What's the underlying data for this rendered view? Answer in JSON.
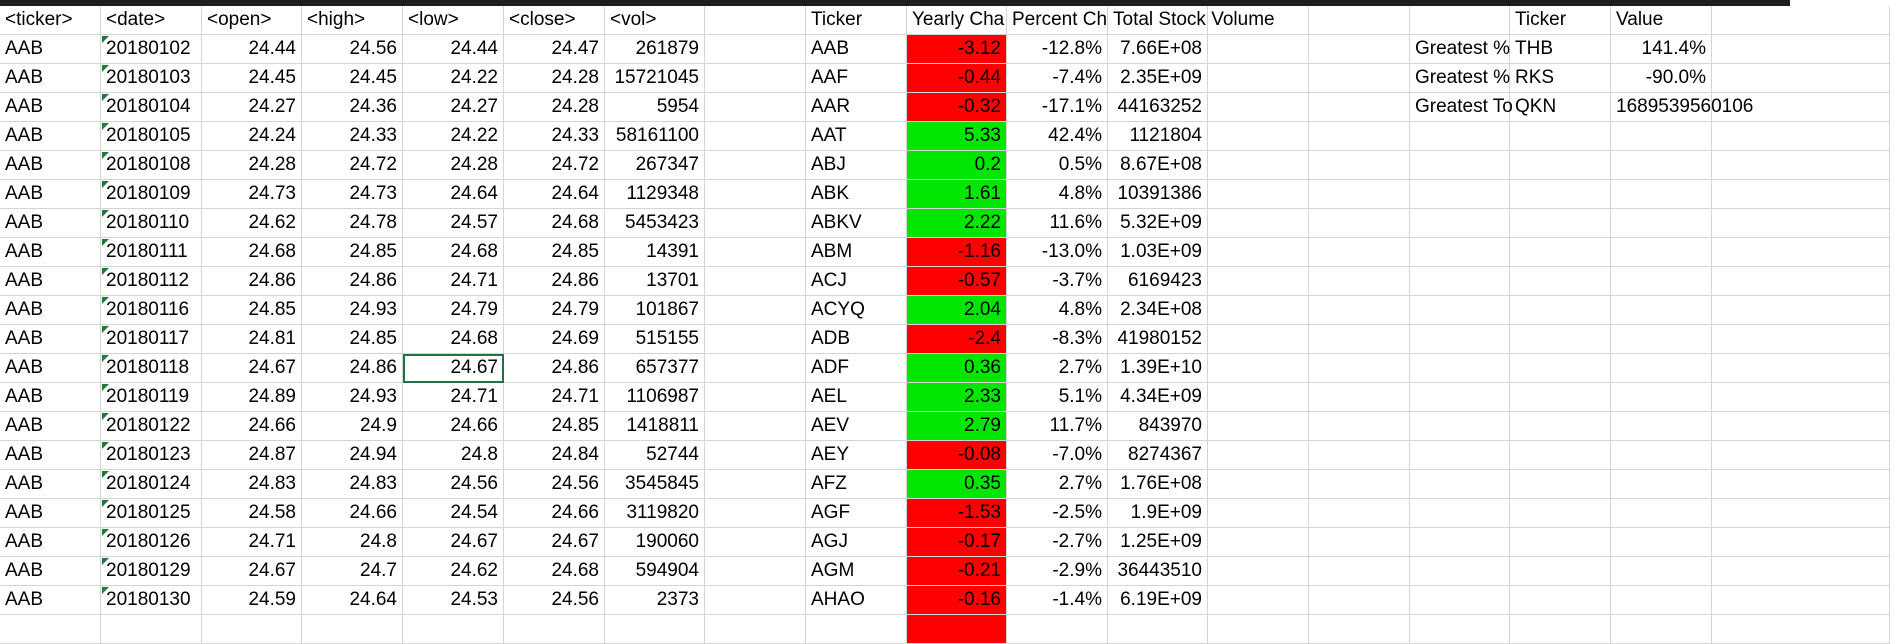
{
  "colors": {
    "negative_fill": "#ff0000",
    "positive_fill": "#00e600",
    "selection": "#217346",
    "gridline": "#d4d4d4"
  },
  "raw_headers": [
    "<ticker>",
    "<date>",
    "<open>",
    "<high>",
    "<low>",
    "<close>",
    "<vol>"
  ],
  "raw_rows": [
    [
      "AAB",
      "20180102",
      "24.44",
      "24.56",
      "24.44",
      "24.47",
      "261879"
    ],
    [
      "AAB",
      "20180103",
      "24.45",
      "24.45",
      "24.22",
      "24.28",
      "15721045"
    ],
    [
      "AAB",
      "20180104",
      "24.27",
      "24.36",
      "24.27",
      "24.28",
      "5954"
    ],
    [
      "AAB",
      "20180105",
      "24.24",
      "24.33",
      "24.22",
      "24.33",
      "58161100"
    ],
    [
      "AAB",
      "20180108",
      "24.28",
      "24.72",
      "24.28",
      "24.72",
      "267347"
    ],
    [
      "AAB",
      "20180109",
      "24.73",
      "24.73",
      "24.64",
      "24.64",
      "1129348"
    ],
    [
      "AAB",
      "20180110",
      "24.62",
      "24.78",
      "24.57",
      "24.68",
      "5453423"
    ],
    [
      "AAB",
      "20180111",
      "24.68",
      "24.85",
      "24.68",
      "24.85",
      "14391"
    ],
    [
      "AAB",
      "20180112",
      "24.86",
      "24.86",
      "24.71",
      "24.86",
      "13701"
    ],
    [
      "AAB",
      "20180116",
      "24.85",
      "24.93",
      "24.79",
      "24.79",
      "101867"
    ],
    [
      "AAB",
      "20180117",
      "24.81",
      "24.85",
      "24.68",
      "24.69",
      "515155"
    ],
    [
      "AAB",
      "20180118",
      "24.67",
      "24.86",
      "24.67",
      "24.86",
      "657377"
    ],
    [
      "AAB",
      "20180119",
      "24.89",
      "24.93",
      "24.71",
      "24.71",
      "1106987"
    ],
    [
      "AAB",
      "20180122",
      "24.66",
      "24.9",
      "24.66",
      "24.85",
      "1418811"
    ],
    [
      "AAB",
      "20180123",
      "24.87",
      "24.94",
      "24.8",
      "24.84",
      "52744"
    ],
    [
      "AAB",
      "20180124",
      "24.83",
      "24.83",
      "24.56",
      "24.56",
      "3545845"
    ],
    [
      "AAB",
      "20180125",
      "24.58",
      "24.66",
      "24.54",
      "24.66",
      "3119820"
    ],
    [
      "AAB",
      "20180126",
      "24.71",
      "24.8",
      "24.67",
      "24.67",
      "190060"
    ],
    [
      "AAB",
      "20180129",
      "24.67",
      "24.7",
      "24.62",
      "24.68",
      "594904"
    ],
    [
      "AAB",
      "20180130",
      "24.59",
      "24.64",
      "24.53",
      "24.56",
      "2373"
    ]
  ],
  "selected_cell": {
    "row": 11,
    "col": 4
  },
  "summary_headers": [
    "Ticker",
    "Yearly Cha",
    "Percent Ch",
    "Total Stock Volume"
  ],
  "summary_rows": [
    {
      "ticker": "AAB",
      "change": "-3.12",
      "pct": "-12.8%",
      "volume": "7.66E+08",
      "sign": "neg"
    },
    {
      "ticker": "AAF",
      "change": "-0.44",
      "pct": "-7.4%",
      "volume": "2.35E+09",
      "sign": "neg"
    },
    {
      "ticker": "AAR",
      "change": "-0.32",
      "pct": "-17.1%",
      "volume": "44163252",
      "sign": "neg"
    },
    {
      "ticker": "AAT",
      "change": "5.33",
      "pct": "42.4%",
      "volume": "1121804",
      "sign": "pos"
    },
    {
      "ticker": "ABJ",
      "change": "0.2",
      "pct": "0.5%",
      "volume": "8.67E+08",
      "sign": "pos"
    },
    {
      "ticker": "ABK",
      "change": "1.61",
      "pct": "4.8%",
      "volume": "10391386",
      "sign": "pos"
    },
    {
      "ticker": "ABKV",
      "change": "2.22",
      "pct": "11.6%",
      "volume": "5.32E+09",
      "sign": "pos"
    },
    {
      "ticker": "ABM",
      "change": "-1.16",
      "pct": "-13.0%",
      "volume": "1.03E+09",
      "sign": "neg"
    },
    {
      "ticker": "ACJ",
      "change": "-0.57",
      "pct": "-3.7%",
      "volume": "6169423",
      "sign": "neg"
    },
    {
      "ticker": "ACYQ",
      "change": "2.04",
      "pct": "4.8%",
      "volume": "2.34E+08",
      "sign": "pos"
    },
    {
      "ticker": "ADB",
      "change": "-2.4",
      "pct": "-8.3%",
      "volume": "41980152",
      "sign": "neg"
    },
    {
      "ticker": "ADF",
      "change": "0.36",
      "pct": "2.7%",
      "volume": "1.39E+10",
      "sign": "pos"
    },
    {
      "ticker": "AEL",
      "change": "2.33",
      "pct": "5.1%",
      "volume": "4.34E+09",
      "sign": "pos"
    },
    {
      "ticker": "AEV",
      "change": "2.79",
      "pct": "11.7%",
      "volume": "843970",
      "sign": "pos"
    },
    {
      "ticker": "AEY",
      "change": "-0.08",
      "pct": "-7.0%",
      "volume": "8274367",
      "sign": "neg"
    },
    {
      "ticker": "AFZ",
      "change": "0.35",
      "pct": "2.7%",
      "volume": "1.76E+08",
      "sign": "pos"
    },
    {
      "ticker": "AGF",
      "change": "-1.53",
      "pct": "-2.5%",
      "volume": "1.9E+09",
      "sign": "neg"
    },
    {
      "ticker": "AGJ",
      "change": "-0.17",
      "pct": "-2.7%",
      "volume": "1.25E+09",
      "sign": "neg"
    },
    {
      "ticker": "AGM",
      "change": "-0.21",
      "pct": "-2.9%",
      "volume": "36443510",
      "sign": "neg"
    },
    {
      "ticker": "AHAO",
      "change": "-0.16",
      "pct": "-1.4%",
      "volume": "6.19E+09",
      "sign": "neg"
    }
  ],
  "greatest_headers": [
    "Ticker",
    "Value"
  ],
  "greatest_rows": [
    {
      "label": "Greatest %",
      "ticker": "THB",
      "value": "141.4%"
    },
    {
      "label": "Greatest %",
      "ticker": "RKS",
      "value": "-90.0%"
    },
    {
      "label": "Greatest To",
      "ticker": "QKN",
      "value": "1689539560106"
    }
  ]
}
